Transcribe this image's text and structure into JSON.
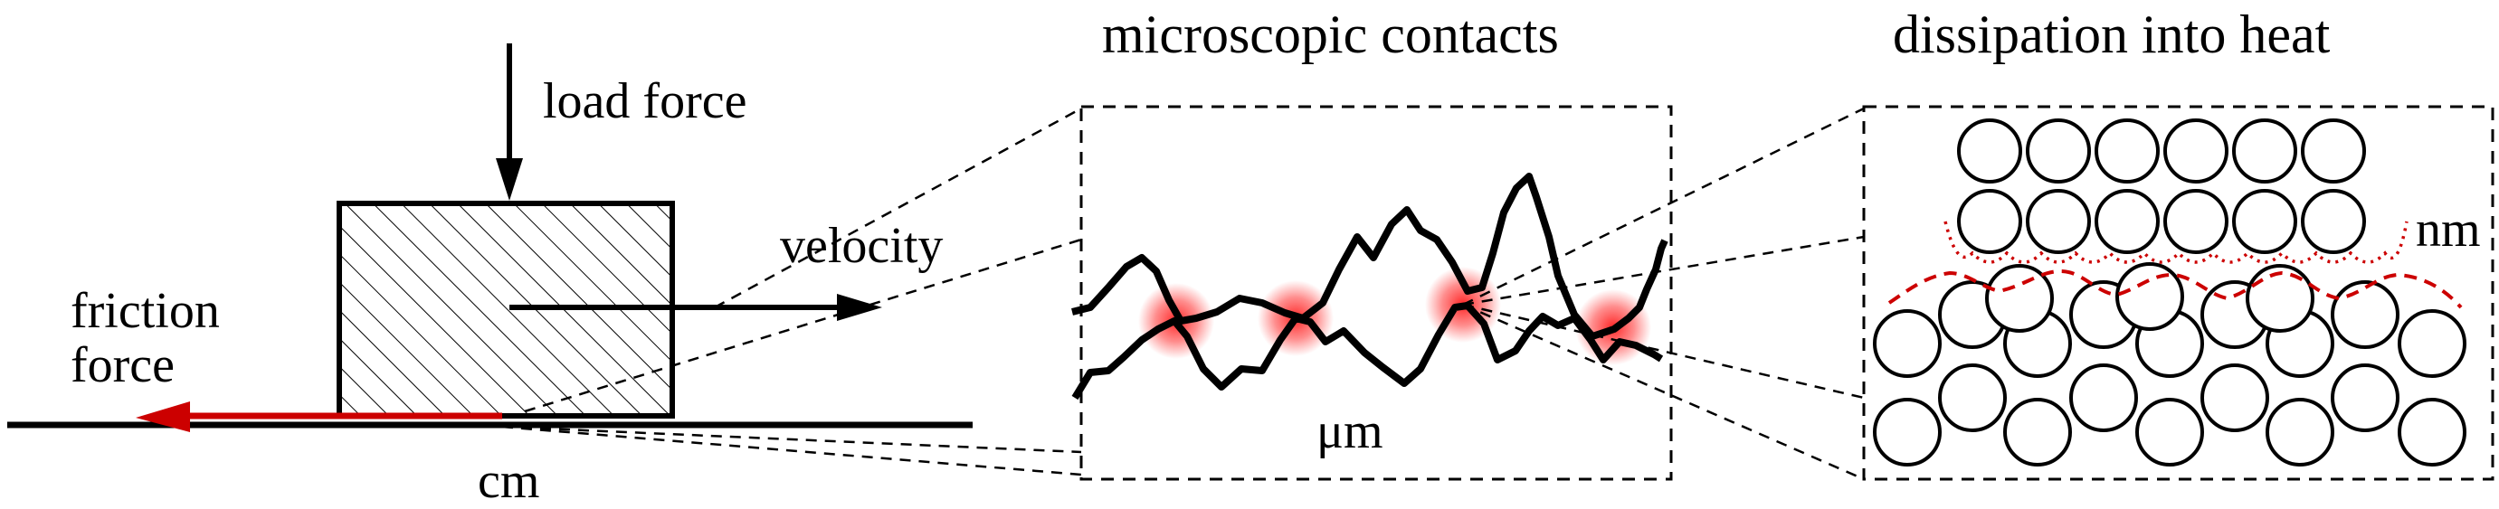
{
  "labels": {
    "load_force": "load force",
    "velocity": "velocity",
    "friction_force_line1": "friction",
    "friction_force_line2": "force",
    "cm": "cm",
    "microscopic_contacts": "microscopic contacts",
    "um": "μm",
    "dissipation": "dissipation into heat",
    "nm": "nm"
  },
  "colors": {
    "line": "#000000",
    "friction_arrow": "#cc0000",
    "contact_glow": "#ff2020",
    "interface_dash": "#cc0000"
  },
  "icons": {
    "load_arrow": "down-arrow-icon",
    "velocity_arrow": "right-arrow-icon",
    "friction_arrow": "left-arrow-icon"
  }
}
